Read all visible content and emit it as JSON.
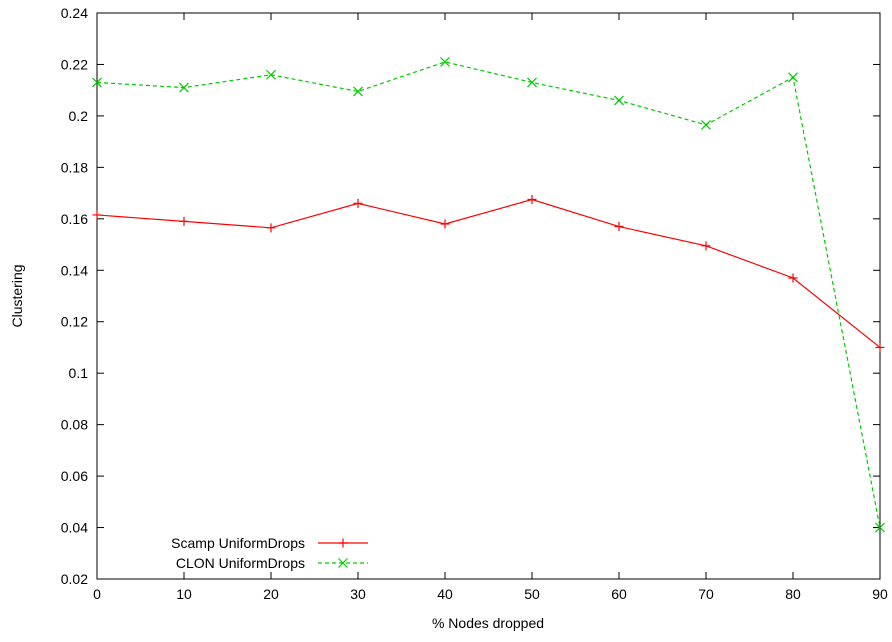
{
  "chart_data": {
    "type": "line",
    "title": "",
    "xlabel": "% Nodes dropped",
    "ylabel": "Clustering",
    "xlim": [
      0,
      90
    ],
    "ylim": [
      0.02,
      0.24
    ],
    "xticks": [
      0,
      10,
      20,
      30,
      40,
      50,
      60,
      70,
      80,
      90
    ],
    "yticks": [
      0.02,
      0.04,
      0.06,
      0.08,
      0.1,
      0.12,
      0.14,
      0.16,
      0.18,
      0.2,
      0.22,
      0.24
    ],
    "ytick_labels": [
      "0.02",
      "0.04",
      "0.06",
      "0.08",
      "0.1",
      "0.12",
      "0.14",
      "0.16",
      "0.18",
      "0.2",
      "0.22",
      "0.24"
    ],
    "grid": false,
    "legend_position": "bottom-left",
    "x": [
      0,
      10,
      20,
      30,
      40,
      50,
      60,
      70,
      80,
      90
    ],
    "series": [
      {
        "name": "Scamp UniformDrops",
        "color": "#ff0000",
        "dash": "solid",
        "marker": "plus",
        "values": [
          0.1615,
          0.159,
          0.1565,
          0.166,
          0.158,
          0.1675,
          0.157,
          0.1495,
          0.137,
          0.11
        ]
      },
      {
        "name": "CLON UniformDrops",
        "color": "#00cc00",
        "dash": "dashed",
        "marker": "cross",
        "values": [
          0.213,
          0.211,
          0.216,
          0.2095,
          0.221,
          0.213,
          0.206,
          0.1965,
          0.215,
          0.04
        ]
      }
    ]
  }
}
